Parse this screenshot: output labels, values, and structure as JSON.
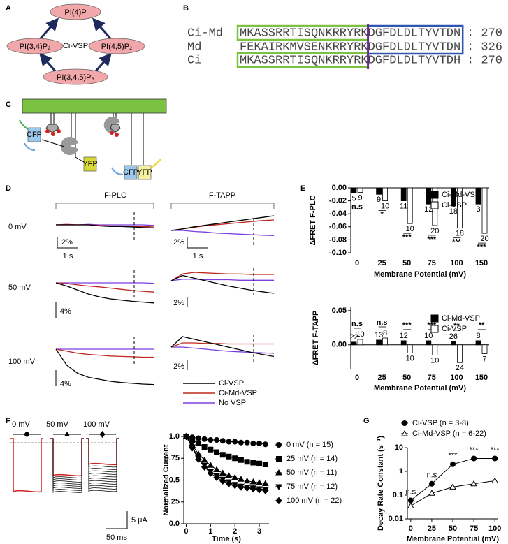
{
  "panel_labels": [
    "A",
    "B",
    "C",
    "D",
    "E",
    "F",
    "G"
  ],
  "diagram_a": {
    "nodes": [
      "PI(4)P",
      "PI(3,4)P₂",
      "PI(4,5)P₂",
      "PI(3,4,5)P₃"
    ],
    "center": "Ci-VSP"
  },
  "alignment_b": {
    "rows": [
      {
        "name": "Ci-Md",
        "sequence": "MKASSRRTISQNKRRYRKDGFDLDLTYVTDN",
        "end": ": 270"
      },
      {
        "name": "Md",
        "sequence": "FEKAIRKMVSENKRRYRKDGFDLDLTYVTDN",
        "end": ": 326"
      },
      {
        "name": "Ci",
        "sequence": "MKASSRRTISQNKRRYRKDGFDLDLTYVTDH",
        "end": ": 270"
      }
    ]
  },
  "diagram_c": {
    "labels": [
      "CFP",
      "YFP",
      "CFP",
      "YFP"
    ]
  },
  "traces_d": {
    "columns": [
      "F-PLC",
      "F-TAPP"
    ],
    "series": [
      {
        "name": "Ci-VSP",
        "color": "#000000"
      },
      {
        "name": "Ci-Md-VSP",
        "color": "#c0281e"
      },
      {
        "name": "No VSP",
        "color": "#7b3fe0"
      }
    ],
    "rows": [
      {
        "label": "0 mV",
        "panels": [
          {
            "scale_bars": [
              "2%",
              "1 s"
            ],
            "traces": [
              [
                0,
                0,
                0,
                0,
                -0.2,
                -0.3,
                -0.3,
                -0.4,
                -0.5,
                -0.6
              ],
              [
                0,
                0.1,
                0,
                0,
                -0.1,
                -0.2,
                -0.2,
                -0.3,
                -0.3,
                -0.4
              ],
              [
                0,
                0,
                0,
                0.1,
                0,
                0,
                0,
                0,
                0,
                -0.1
              ]
            ]
          },
          {
            "scale_bars": [
              "2%",
              "1 s"
            ],
            "traces": [
              [
                0,
                0.3,
                0.7,
                1,
                1.3,
                1.6,
                1.9,
                2.2,
                2.5,
                2.8
              ],
              [
                0,
                0.3,
                0.6,
                0.9,
                1.1,
                1.3,
                1.5,
                1.7,
                1.9,
                2
              ],
              [
                0,
                0,
                -0.2,
                -0.3,
                -0.5,
                -0.6,
                -0.7,
                -0.8,
                -0.9,
                -1
              ]
            ]
          }
        ]
      },
      {
        "label": "50 mV",
        "panels": [
          {
            "scale_bars": [
              "4%"
            ],
            "traces": [
              [
                0,
                -0.8,
                -1.8,
                -2.8,
                -3.5,
                -4,
                -4.3,
                -4.6,
                -4.8,
                -5
              ],
              [
                0,
                -0.2,
                -0.5,
                -0.8,
                -1,
                -1.3,
                -1.6,
                -1.9,
                -2.1,
                -2.3
              ],
              [
                0,
                0,
                0,
                0,
                0,
                0,
                0,
                0,
                0,
                -0.1
              ]
            ]
          },
          {
            "scale_bars": [
              "2%"
            ],
            "traces": [
              [
                0,
                1,
                0.5,
                0,
                -0.5,
                -1,
                -1.4,
                -1.8,
                -2.1,
                -2.4
              ],
              [
                0,
                1.3,
                1.6,
                1.5,
                1.4,
                1.3,
                1.3,
                1.2,
                1.2,
                1.2
              ],
              [
                0,
                0.3,
                0.3,
                0.2,
                0.2,
                0.2,
                0.1,
                0.1,
                0.1,
                0.1
              ]
            ]
          }
        ]
      },
      {
        "label": "100 mV",
        "panels": [
          {
            "scale_bars": [
              "4%"
            ],
            "traces": [
              [
                0,
                -4,
                -6,
                -7,
                -7.5,
                -8,
                -8.3,
                -8.5,
                -8.7,
                -8.8
              ],
              [
                0,
                -0.5,
                -1,
                -1.3,
                -1.5,
                -1.7,
                -1.8,
                -1.9,
                -2,
                -2
              ],
              [
                0,
                0,
                0,
                0,
                0,
                0,
                0,
                0,
                0,
                0
              ]
            ]
          },
          {
            "scale_bars": [
              "2%"
            ],
            "traces": [
              [
                0,
                2,
                1.5,
                1,
                0.5,
                0,
                -0.5,
                -1,
                -1.4,
                -1.8
              ],
              [
                0,
                0.8,
                0.8,
                0.7,
                0.7,
                0.6,
                0.6,
                0.6,
                0.6,
                0.6
              ],
              [
                0,
                0,
                -0.2,
                -0.4,
                -0.6,
                -0.8,
                -0.9,
                -1,
                -1.1,
                -1.2
              ]
            ]
          }
        ]
      }
    ]
  },
  "panel_f": {
    "voltages": [
      "0 mV",
      "50 mV",
      "100 mV"
    ],
    "scale_bars": [
      "5 μA",
      "50 ms"
    ]
  },
  "chart_data": [
    {
      "type": "bar",
      "y_label": "ΔFRET F-PLC",
      "x_label": "Membrane Potential (mV)",
      "categories": [
        "0",
        "25",
        "50",
        "75",
        "100",
        "150"
      ],
      "series": [
        {
          "name": "Ci-Md-VSP",
          "color": "#000000",
          "values": [
            -0.008,
            -0.01,
            -0.02,
            -0.025,
            -0.028,
            -0.025
          ],
          "n": [
            5,
            9,
            11,
            12,
            18,
            3
          ]
        },
        {
          "name": "Ci-VSP",
          "color": "#ffffff",
          "values": [
            -0.007,
            -0.02,
            -0.055,
            -0.058,
            -0.062,
            -0.07
          ],
          "n": [
            9,
            10,
            10,
            20,
            18,
            20
          ]
        }
      ],
      "significance": [
        "n.s",
        "*",
        "***",
        "***",
        "***",
        "***"
      ],
      "ylim": [
        -0.1,
        0
      ],
      "yticks": [
        {
          "value": 0,
          "label": "0.00"
        },
        {
          "value": -0.02,
          "label": "-0.02"
        },
        {
          "value": -0.04,
          "label": "-0.04"
        },
        {
          "value": -0.06,
          "label": "-0.06"
        },
        {
          "value": -0.08,
          "label": "-0.08"
        },
        {
          "value": -0.1,
          "label": "-0.10"
        }
      ]
    },
    {
      "type": "bar",
      "y_label": "ΔFRET F-TAPP",
      "x_label": "Membrane Potential (mV)",
      "categories": [
        "0",
        "25",
        "50",
        "75",
        "100",
        "150"
      ],
      "series": [
        {
          "name": "Ci-Md-VSP",
          "color": "#000000",
          "values": [
            0.004,
            0.007,
            0.006,
            0.006,
            0.005,
            0.006
          ],
          "n": [
            22,
            13,
            12,
            10,
            26,
            8
          ]
        },
        {
          "name": "Ci-VSP",
          "color": "#ffffff",
          "values": [
            0.008,
            0.01,
            -0.012,
            -0.015,
            -0.026,
            -0.013
          ],
          "n": [
            10,
            8,
            10,
            10,
            24,
            7
          ]
        }
      ],
      "significance": [
        "n.s",
        "n.s",
        "***",
        "***",
        "**",
        "**"
      ],
      "ylim": [
        -0.035,
        0.055
      ],
      "yticks": [
        {
          "value": 0,
          "label": "0.00"
        },
        0.05
      ]
    },
    {
      "type": "line",
      "y_label": "Normalized Current",
      "x_label": "Time (s)",
      "x": [
        0,
        0.25,
        0.5,
        0.75,
        1,
        1.25,
        1.5,
        1.75,
        2,
        2.25,
        2.5,
        2.75,
        3,
        3.25
      ],
      "series": [
        {
          "name": "0 mV (n = 15)",
          "marker": "circle",
          "filled": true,
          "color": "#000000",
          "values": [
            1,
            0.99,
            0.98,
            0.97,
            0.96,
            0.96,
            0.95,
            0.94,
            0.94,
            0.93,
            0.93,
            0.92,
            0.92,
            0.91
          ]
        },
        {
          "name": "25 mV (n = 14)",
          "marker": "square",
          "filled": true,
          "color": "#000000",
          "values": [
            1,
            0.96,
            0.92,
            0.88,
            0.85,
            0.82,
            0.79,
            0.77,
            0.75,
            0.73,
            0.71,
            0.7,
            0.69,
            0.68
          ]
        },
        {
          "name": "50 mV (n = 11)",
          "marker": "triangle",
          "filled": true,
          "color": "#000000",
          "values": [
            1,
            0.9,
            0.8,
            0.73,
            0.67,
            0.62,
            0.58,
            0.55,
            0.53,
            0.51,
            0.49,
            0.48,
            0.47,
            0.46
          ]
        },
        {
          "name": "75 mV (n = 12)",
          "marker": "triangle-down",
          "filled": true,
          "color": "#000000",
          "values": [
            1,
            0.88,
            0.76,
            0.67,
            0.6,
            0.55,
            0.51,
            0.48,
            0.45,
            0.43,
            0.42,
            0.41,
            0.4,
            0.39
          ]
        },
        {
          "name": "100 mV (n = 22)",
          "marker": "diamond",
          "filled": true,
          "color": "#000000",
          "values": [
            1,
            0.87,
            0.74,
            0.65,
            0.58,
            0.53,
            0.49,
            0.46,
            0.44,
            0.42,
            0.41,
            0.4,
            0.39,
            0.38
          ]
        }
      ],
      "xlim": [
        -0.1,
        3.4
      ],
      "xticks": [
        0,
        1,
        2,
        3
      ],
      "ylim": [
        0,
        1
      ],
      "yticks": [
        {
          "value": 0,
          "label": "0.0"
        },
        0.25,
        0.5,
        0.75,
        {
          "value": 1,
          "label": "1.0"
        }
      ]
    },
    {
      "type": "line",
      "log_y": true,
      "y_label": "Decay Rate Constant (s⁻¹)",
      "x_label": "Membrane Potential (mV)",
      "x": [
        0,
        25,
        50,
        75,
        100
      ],
      "series": [
        {
          "name": "Ci-VSP  (n = 3-8)",
          "marker": "circle",
          "filled": true,
          "color": "#000000",
          "values": [
            0.06,
            0.3,
            2,
            3.5,
            3.5
          ]
        },
        {
          "name": "Ci-Md-VSP  (n = 6-22)",
          "marker": "triangle",
          "filled": false,
          "color": "#000000",
          "values": [
            0.035,
            0.12,
            0.22,
            0.3,
            0.4
          ]
        }
      ],
      "significance": [
        "n.s",
        "n.s",
        "***",
        "***",
        "***"
      ],
      "xlim": [
        -4,
        104
      ],
      "xticks": [
        0,
        25,
        50,
        75,
        100
      ],
      "ylim": [
        0.01,
        10
      ],
      "yticks": [
        0.01,
        0.1,
        1,
        10
      ]
    }
  ]
}
